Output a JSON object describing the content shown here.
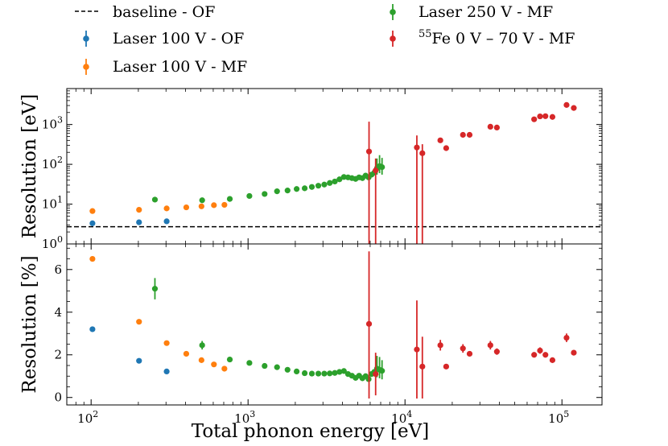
{
  "chart_data": {
    "type": "scatter",
    "xlabel": "Total phonon energy [eV]",
    "xscale": "log",
    "xlim": [
      70,
      180000
    ],
    "x_tick_labels": [
      "10",
      "10",
      "10",
      "10"
    ],
    "x_tick_exponents": [
      "2",
      "3",
      "4",
      "5"
    ],
    "legend": {
      "placement": "top, outside plot, two columns",
      "entries": [
        {
          "label": "baseline - OF",
          "marker": "dashed-line",
          "color": "#000000"
        },
        {
          "label": "Laser 100 V - OF",
          "marker": "dot-errorbar",
          "color": "#1f77b4"
        },
        {
          "label": "Laser 100 V - MF",
          "marker": "dot-errorbar",
          "color": "#ff7f0e"
        },
        {
          "label": "Laser 250 V - MF",
          "marker": "dot-errorbar",
          "color": "#2ca02c"
        },
        {
          "label_sup": "55",
          "label": "Fe 0 V – 70 V - MF",
          "marker": "dot-errorbar",
          "color": "#d62728"
        }
      ]
    },
    "panels": [
      {
        "id": "top",
        "ylabel": "Resolution [eV]",
        "yscale": "log",
        "ylim": [
          1,
          8000
        ],
        "y_tick_labels": [
          "10",
          "10",
          "10",
          "10"
        ],
        "y_tick_exponents": [
          "0",
          "1",
          "2",
          "3"
        ],
        "baseline": {
          "name": "baseline - OF",
          "y": 2.7,
          "style": "dashed",
          "color": "#000000"
        },
        "series": [
          {
            "name": "Laser 100 V - OF",
            "color": "#1f77b4",
            "points": [
              {
                "x": 102,
                "y": 3.3
              },
              {
                "x": 202,
                "y": 3.5
              },
              {
                "x": 303,
                "y": 3.7
              }
            ]
          },
          {
            "name": "Laser 100 V - MF",
            "color": "#ff7f0e",
            "points": [
              {
                "x": 102,
                "y": 6.7
              },
              {
                "x": 202,
                "y": 7.2
              },
              {
                "x": 303,
                "y": 7.8
              },
              {
                "x": 404,
                "y": 8.3
              },
              {
                "x": 505,
                "y": 8.8
              },
              {
                "x": 606,
                "y": 9.4
              },
              {
                "x": 707,
                "y": 9.6
              }
            ]
          },
          {
            "name": "Laser 250 V - MF",
            "color": "#2ca02c",
            "points": [
              {
                "x": 255,
                "y": 13.0
              },
              {
                "x": 510,
                "y": 12.5
              },
              {
                "x": 765,
                "y": 13.5
              },
              {
                "x": 1020,
                "y": 16.0
              },
              {
                "x": 1275,
                "y": 18.0
              },
              {
                "x": 1530,
                "y": 21.0
              },
              {
                "x": 1785,
                "y": 22.0
              },
              {
                "x": 2040,
                "y": 24.0
              },
              {
                "x": 2295,
                "y": 25.0
              },
              {
                "x": 2550,
                "y": 27.0
              },
              {
                "x": 2805,
                "y": 29.0
              },
              {
                "x": 3060,
                "y": 31.0
              },
              {
                "x": 3315,
                "y": 34.0
              },
              {
                "x": 3570,
                "y": 37.0
              },
              {
                "x": 3825,
                "y": 42.0
              },
              {
                "x": 4080,
                "y": 48.0
              },
              {
                "x": 4335,
                "y": 47.0
              },
              {
                "x": 4590,
                "y": 45.0
              },
              {
                "x": 4845,
                "y": 43.0
              },
              {
                "x": 5100,
                "y": 47.0
              },
              {
                "x": 5355,
                "y": 45.0
              },
              {
                "x": 5610,
                "y": 52.0
              },
              {
                "x": 5865,
                "y": 47.0
              },
              {
                "x": 6120,
                "y": 55.0
              },
              {
                "x": 6375,
                "y": 62.0
              },
              {
                "x": 6630,
                "y": 80.0,
                "err_lo": 25,
                "err_hi": 60
              },
              {
                "x": 6885,
                "y": 90.0,
                "err_lo": 30,
                "err_hi": 80
              },
              {
                "x": 7140,
                "y": 85.0,
                "err_lo": 30,
                "err_hi": 60
              }
            ]
          },
          {
            "name": "55Fe 0 V – 70 V - MF",
            "color": "#d62728",
            "points": [
              {
                "x": 5900,
                "y": 210,
                "err_lo": 209,
                "err_hi": 970
              },
              {
                "x": 6500,
                "y": 70,
                "err_lo": 69.5,
                "err_hi": 70
              },
              {
                "x": 11900,
                "y": 265,
                "err_lo": 264,
                "err_hi": 265
              },
              {
                "x": 12900,
                "y": 190,
                "err_lo": 189,
                "err_hi": 130
              },
              {
                "x": 16800,
                "y": 400
              },
              {
                "x": 18300,
                "y": 255
              },
              {
                "x": 23400,
                "y": 550
              },
              {
                "x": 25800,
                "y": 550
              },
              {
                "x": 35000,
                "y": 880
              },
              {
                "x": 38500,
                "y": 840
              },
              {
                "x": 66500,
                "y": 1350
              },
              {
                "x": 72500,
                "y": 1600
              },
              {
                "x": 78500,
                "y": 1620
              },
              {
                "x": 87000,
                "y": 1550
              },
              {
                "x": 107000,
                "y": 3100
              },
              {
                "x": 119000,
                "y": 2600
              }
            ]
          }
        ]
      },
      {
        "id": "bottom",
        "ylabel": "Resolution [%]",
        "yscale": "linear",
        "ylim": [
          -0.35,
          7.2
        ],
        "y_tick_labels": [
          "0",
          "2",
          "4",
          "6"
        ],
        "series": [
          {
            "name": "Laser 100 V - OF",
            "color": "#1f77b4",
            "points": [
              {
                "x": 102,
                "y": 3.2
              },
              {
                "x": 202,
                "y": 1.72
              },
              {
                "x": 303,
                "y": 1.22
              }
            ]
          },
          {
            "name": "Laser 100 V - MF",
            "color": "#ff7f0e",
            "points": [
              {
                "x": 102,
                "y": 6.5
              },
              {
                "x": 202,
                "y": 3.55
              },
              {
                "x": 303,
                "y": 2.55
              },
              {
                "x": 404,
                "y": 2.05
              },
              {
                "x": 505,
                "y": 1.75
              },
              {
                "x": 606,
                "y": 1.55
              },
              {
                "x": 707,
                "y": 1.35
              }
            ]
          },
          {
            "name": "Laser 250 V - MF",
            "color": "#2ca02c",
            "points": [
              {
                "x": 255,
                "y": 5.1,
                "err_lo": 0.5,
                "err_hi": 0.5
              },
              {
                "x": 510,
                "y": 2.45,
                "err_lo": 0.2,
                "err_hi": 0.2
              },
              {
                "x": 765,
                "y": 1.78
              },
              {
                "x": 1020,
                "y": 1.62
              },
              {
                "x": 1275,
                "y": 1.48
              },
              {
                "x": 1530,
                "y": 1.42
              },
              {
                "x": 1785,
                "y": 1.3
              },
              {
                "x": 2040,
                "y": 1.22
              },
              {
                "x": 2295,
                "y": 1.14
              },
              {
                "x": 2550,
                "y": 1.12
              },
              {
                "x": 2805,
                "y": 1.12
              },
              {
                "x": 3060,
                "y": 1.12
              },
              {
                "x": 3315,
                "y": 1.13
              },
              {
                "x": 3570,
                "y": 1.15
              },
              {
                "x": 3825,
                "y": 1.2
              },
              {
                "x": 4080,
                "y": 1.24
              },
              {
                "x": 4335,
                "y": 1.1
              },
              {
                "x": 4590,
                "y": 1.02
              },
              {
                "x": 4845,
                "y": 0.92
              },
              {
                "x": 5100,
                "y": 1.02
              },
              {
                "x": 5355,
                "y": 0.9
              },
              {
                "x": 5610,
                "y": 1.0
              },
              {
                "x": 5865,
                "y": 0.86
              },
              {
                "x": 6120,
                "y": 1.1
              },
              {
                "x": 6375,
                "y": 1.2
              },
              {
                "x": 6630,
                "y": 1.35,
                "err_lo": 0.4,
                "err_hi": 0.6
              },
              {
                "x": 6885,
                "y": 1.3,
                "err_lo": 0.4,
                "err_hi": 0.6
              },
              {
                "x": 7140,
                "y": 1.25,
                "err_lo": 0.4,
                "err_hi": 0.5
              }
            ]
          },
          {
            "name": "55Fe 0 V – 70 V - MF",
            "color": "#d62728",
            "points": [
              {
                "x": 5900,
                "y": 3.45,
                "err_lo": 3.5,
                "err_hi": 3.4
              },
              {
                "x": 6500,
                "y": 1.1,
                "err_lo": 1.0,
                "err_hi": 1.0
              },
              {
                "x": 11900,
                "y": 2.25,
                "err_lo": 2.3,
                "err_hi": 2.3
              },
              {
                "x": 12900,
                "y": 1.45,
                "err_lo": 1.5,
                "err_hi": 1.4
              },
              {
                "x": 16800,
                "y": 2.45,
                "err_lo": 0.25,
                "err_hi": 0.25
              },
              {
                "x": 18300,
                "y": 1.45
              },
              {
                "x": 23400,
                "y": 2.3,
                "err_lo": 0.2,
                "err_hi": 0.2
              },
              {
                "x": 25800,
                "y": 2.05
              },
              {
                "x": 35000,
                "y": 2.45,
                "err_lo": 0.2,
                "err_hi": 0.2
              },
              {
                "x": 38500,
                "y": 2.15,
                "err_lo": 0.15,
                "err_hi": 0.15
              },
              {
                "x": 66500,
                "y": 2.0
              },
              {
                "x": 72500,
                "y": 2.2,
                "err_lo": 0.15,
                "err_hi": 0.15
              },
              {
                "x": 78500,
                "y": 2.0
              },
              {
                "x": 87000,
                "y": 1.75
              },
              {
                "x": 107000,
                "y": 2.8,
                "err_lo": 0.2,
                "err_hi": 0.2
              },
              {
                "x": 119000,
                "y": 2.1
              }
            ]
          }
        ]
      }
    ]
  }
}
